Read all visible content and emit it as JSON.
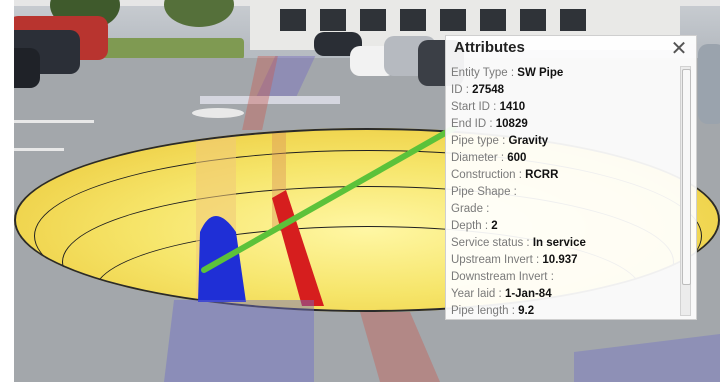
{
  "panel": {
    "title": "Attributes",
    "close_symbol": "✕",
    "attributes": [
      {
        "label": "Entity Type",
        "value": "SW Pipe"
      },
      {
        "label": "ID",
        "value": "27548"
      },
      {
        "label": "Start ID",
        "value": "1410"
      },
      {
        "label": "End ID",
        "value": "10829"
      },
      {
        "label": "Pipe type",
        "value": "Gravity"
      },
      {
        "label": "Diameter",
        "value": "600"
      },
      {
        "label": "Construction",
        "value": "RCRR"
      },
      {
        "label": "Pipe Shape",
        "value": ""
      },
      {
        "label": "Grade",
        "value": ""
      },
      {
        "label": "Depth",
        "value": "2"
      },
      {
        "label": "Service status",
        "value": "In service"
      },
      {
        "label": "Upstream Invert",
        "value": "10.937"
      },
      {
        "label": "Downstream Invert",
        "value": ""
      },
      {
        "label": "Year laid",
        "value": "1-Jan-84"
      },
      {
        "label": "Pipe length",
        "value": "9.2"
      }
    ]
  },
  "colors": {
    "excavation": "#f6e56a",
    "blue_pipe": "#1f2fd6",
    "red_pipe": "#d61e1e",
    "green_pipe": "#5cc23a"
  }
}
